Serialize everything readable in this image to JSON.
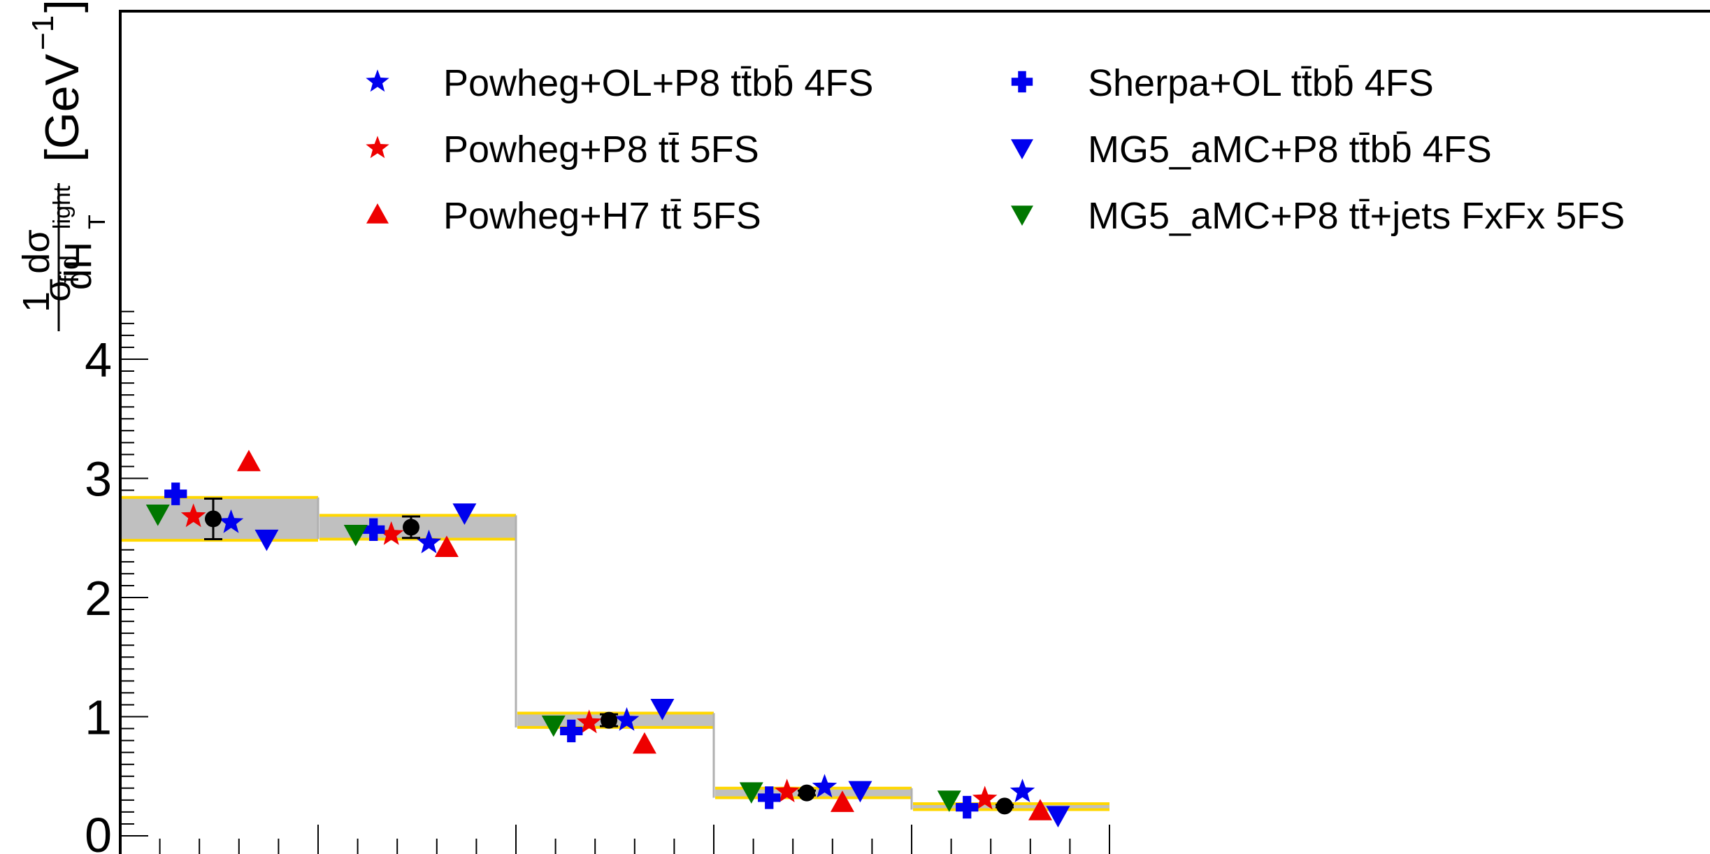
{
  "chart_data": {
    "type": "scatter",
    "title": "",
    "ylabel": {
      "prefix": "1",
      "sigma_fid": "σ",
      "fid_sub": "fid",
      "num": "dσ",
      "den": "dH",
      "den_sup": "light",
      "den_sub": "T",
      "units": "[GeV",
      "units_exp": "−1",
      "units_close": "]"
    },
    "ylim": [
      0,
      4.5
    ],
    "y_ticks": [
      "0",
      "1",
      "2",
      "3",
      "4"
    ],
    "bins": [
      {
        "data": 2.66,
        "data_err": [
          0.17,
          0.17
        ],
        "band": [
          2.48,
          2.84
        ]
      },
      {
        "data": 2.59,
        "data_err": [
          0.09,
          0.09
        ],
        "band": [
          2.49,
          2.69
        ]
      },
      {
        "data": 0.97,
        "data_err": [
          0.05,
          0.05
        ],
        "band": [
          0.91,
          1.03
        ]
      },
      {
        "data": 0.36,
        "data_err": [
          0.02,
          0.02
        ],
        "band": [
          0.32,
          0.4
        ]
      },
      {
        "data": 0.25,
        "data_err": [
          0.01,
          0.01
        ],
        "band": [
          0.22,
          0.27
        ]
      }
    ],
    "series": [
      {
        "name": "Powheg+OL+P8 tt̄bb̄ 4FS",
        "marker": "star",
        "color": "#0000ee",
        "values": [
          2.63,
          2.46,
          0.97,
          0.41,
          0.37
        ]
      },
      {
        "name": "Powheg+P8 tt̄ 5FS",
        "marker": "star",
        "color": "#ee0000",
        "values": [
          2.68,
          2.53,
          0.95,
          0.37,
          0.31
        ]
      },
      {
        "name": "Powheg+H7 tt̄ 5FS",
        "marker": "triangle-up",
        "color": "#ee0000",
        "values": [
          3.14,
          2.42,
          0.77,
          0.28,
          0.21
        ]
      },
      {
        "name": "Sherpa+OL tt̄bb̄ 4FS",
        "marker": "cross",
        "color": "#0000ee",
        "values": [
          2.87,
          2.57,
          0.88,
          0.32,
          0.24
        ]
      },
      {
        "name": "MG5_aMC+P8 tt̄bb̄ 4FS",
        "marker": "triangle-down",
        "color": "#0000ee",
        "values": [
          2.49,
          2.71,
          1.07,
          0.38,
          0.17
        ]
      },
      {
        "name": "MG5_aMC+P8 tt̄+jets FxFx 5FS",
        "marker": "triangle-down",
        "color": "#007700",
        "values": [
          2.7,
          2.53,
          0.93,
          0.37,
          0.3
        ]
      }
    ],
    "grid": false,
    "legend_placement": "top, two columns",
    "colors": {
      "data": "#000000",
      "band_fill": "#c0c0c0",
      "band_edge": "#ffd700",
      "axis": "#000000"
    }
  }
}
